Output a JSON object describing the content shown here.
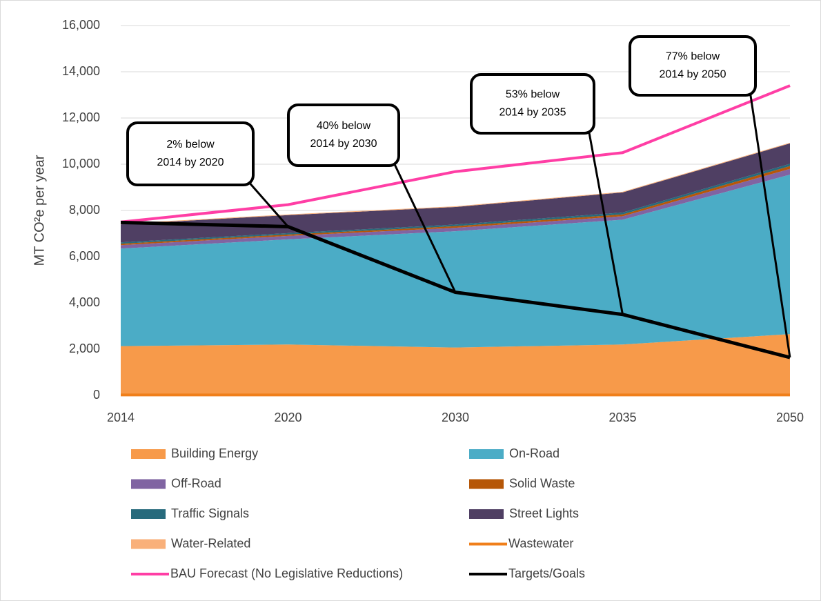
{
  "chart_data": {
    "type": "stacked_area",
    "y_label": "MT CO²e per year",
    "categories": [
      "2014",
      "2020",
      "2030",
      "2035",
      "2050"
    ],
    "ylim": [
      0,
      16000
    ],
    "yticks": [
      0,
      {
        "value": 2000,
        "label": "2,000"
      },
      {
        "value": 4000,
        "label": "4,000"
      },
      {
        "value": 6000,
        "label": "6,000"
      },
      {
        "value": 8000,
        "label": "8,000"
      },
      {
        "value": 10000,
        "label": "10,000"
      },
      {
        "value": 12000,
        "label": "12,000"
      },
      {
        "value": 14000,
        "label": "14,000"
      },
      {
        "value": 16000,
        "label": "16,000"
      }
    ],
    "grid": true,
    "series": [
      {
        "name": "Building Energy",
        "kind": "area",
        "color": "#f79a4a",
        "values": [
          2130,
          2200,
          2070,
          2200,
          2650
        ]
      },
      {
        "name": "On-Road",
        "kind": "area",
        "color": "#4bacc6",
        "values": [
          4220,
          4550,
          5030,
          5400,
          6900
        ]
      },
      {
        "name": "Off-Road",
        "kind": "area",
        "color": "#8064a2",
        "values": [
          150,
          150,
          150,
          150,
          250
        ]
      },
      {
        "name": "Solid Waste",
        "kind": "area",
        "color": "#b65708",
        "values": [
          60,
          60,
          70,
          80,
          120
        ]
      },
      {
        "name": "Traffic Signals",
        "kind": "area",
        "color": "#276a7c",
        "values": [
          60,
          60,
          70,
          80,
          100
        ]
      },
      {
        "name": "Street Lights",
        "kind": "area",
        "color": "#4f3f63",
        "values": [
          780,
          780,
          760,
          870,
          880
        ]
      },
      {
        "name": "Water-Related",
        "kind": "area",
        "color": "#f9b07a",
        "values": [
          30,
          30,
          30,
          30,
          30
        ]
      },
      {
        "name": "Wastewater",
        "kind": "line",
        "color": "#f07f1a",
        "values": [
          20,
          20,
          20,
          20,
          20
        ]
      },
      {
        "name": "BAU Forecast (No Legislative Reductions)",
        "kind": "line",
        "color": "#ff3ea5",
        "values": [
          7500,
          8250,
          9680,
          10500,
          13400
        ]
      },
      {
        "name": "Targets/Goals",
        "kind": "line",
        "color": "#000000",
        "values": [
          7480,
          7300,
          4460,
          3500,
          1640
        ]
      }
    ],
    "annotations": [
      {
        "lines": [
          "2% below",
          "2014 by 2020"
        ],
        "category": 1
      },
      {
        "lines": [
          "40% below",
          "2014 by 2030"
        ],
        "category": 2
      },
      {
        "lines": [
          "53% below",
          "2014 by 2035"
        ],
        "category": 3
      },
      {
        "lines": [
          "77% below",
          "2014 by 2050"
        ],
        "category": 4
      }
    ]
  }
}
